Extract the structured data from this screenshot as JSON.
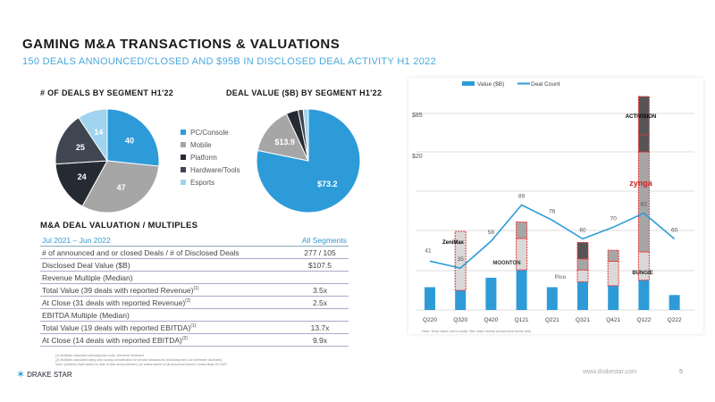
{
  "title": "GAMING M&A TRANSACTIONS & VALUATIONS",
  "subtitle": "150 DEALS ANNOUNCED/CLOSED AND $95B IN DISCLOSED DEAL ACTIVITY H1 2022",
  "chart_data": [
    {
      "type": "pie",
      "title": "# OF DEALS BY SEGMENT H1'22",
      "categories": [
        "PC/Console",
        "Mobile",
        "Platform",
        "Hardware/Tools",
        "Esports"
      ],
      "values": [
        40,
        47,
        24,
        25,
        14
      ],
      "labels": [
        "40",
        "47",
        "24",
        "25",
        "14"
      ]
    },
    {
      "type": "pie",
      "title": "DEAL VALUE ($B) BY SEGMENT H1'22",
      "categories": [
        "PC/Console",
        "Mobile",
        "Platform",
        "Hardware/Tools",
        "Esports"
      ],
      "values": [
        73.2,
        13.9,
        3.5,
        1.5,
        1.5
      ],
      "labels": [
        "$73.2",
        "$13.9",
        "",
        "",
        ""
      ]
    },
    {
      "type": "bar",
      "title": "",
      "categories": [
        "Q220",
        "Q320",
        "Q420",
        "Q121",
        "Q221",
        "Q321",
        "Q421",
        "Q122",
        "Q222"
      ],
      "series": [
        {
          "name": "Value ($B)",
          "values": [
            2.9,
            2.5,
            4.1,
            5.1,
            2.9,
            3.6,
            3.1,
            3.8,
            1.9
          ]
        },
        {
          "name": "Deal Count",
          "values": [
            41,
            35,
            58,
            89,
            76,
            60,
            70,
            82,
            60
          ]
        }
      ],
      "announced_stacks": [
        [],
        [
          7.5
        ],
        [],
        [
          4,
          2.1
        ],
        [],
        [
          1.5,
          1.4,
          2.1
        ],
        [
          3.1,
          1.4
        ],
        [
          3.6,
          12.7,
          2.3
        ]
      ],
      "ytick_labels": [
        "$85",
        "$20"
      ],
      "note": "Note: Deal value not to scale; Bar chart shows announced deals only"
    }
  ],
  "legend": [
    "PC/Console",
    "Mobile",
    "Platform",
    "Hardware/Tools",
    "Esports"
  ],
  "colors": [
    "#2e9bd9",
    "#a6a6a6",
    "#262b33",
    "#3f4651",
    "#9fd3ee"
  ],
  "logos": {
    "q320": "ZeniMax",
    "q121a": "MOONTON",
    "q321a": "Pico",
    "q122a": "ACTIVISION",
    "q122b": "zynga",
    "q122c": "BUNGIE"
  },
  "table": {
    "heading": "M&A DEAL VALUATION / MULTIPLES",
    "period": "Jul 2021 – Jun 2022",
    "segment": "All Segments",
    "rows": [
      {
        "label": "# of announced and or closed Deals / # of Disclosed Deals",
        "sup": "",
        "value": "277 / 105"
      },
      {
        "label": "Disclosed Deal Value ($B)",
        "sup": "",
        "value": "$107.5"
      },
      {
        "label": "Revenue Multiple (Median)",
        "sup": "",
        "value": ""
      },
      {
        "label": "Total Value (39 deals with reported Revenue)",
        "sup": "(1)",
        "value": "3.5x"
      },
      {
        "label": "At Close (31 deals with reported Revenue)",
        "sup": "(2)",
        "value": "2.5x"
      },
      {
        "label": "EBITDA Multiple (Median)",
        "sup": "",
        "value": ""
      },
      {
        "label": "Total Value (19 deals with reported EBITDA)",
        "sup": "(1)",
        "value": "13.7x"
      },
      {
        "label": "At Close (14 deals with reported EBITDA)",
        "sup": "(2)",
        "value": "9.9x"
      }
    ]
  },
  "notes": [
    "(1) Multiples calculated including earn-outs, whenever disclosed",
    "(2) Multiples calculated using only closing consideration for private transactions (excluding earn-out whenever disclosed)",
    "Note: Quarterly chart based on date of deal announcement; pie charts based on all announced and/or closed deals H1 2022"
  ],
  "footer": {
    "brand": "DRAKE STAR",
    "url": "www.drakestar.com",
    "page": "5"
  }
}
